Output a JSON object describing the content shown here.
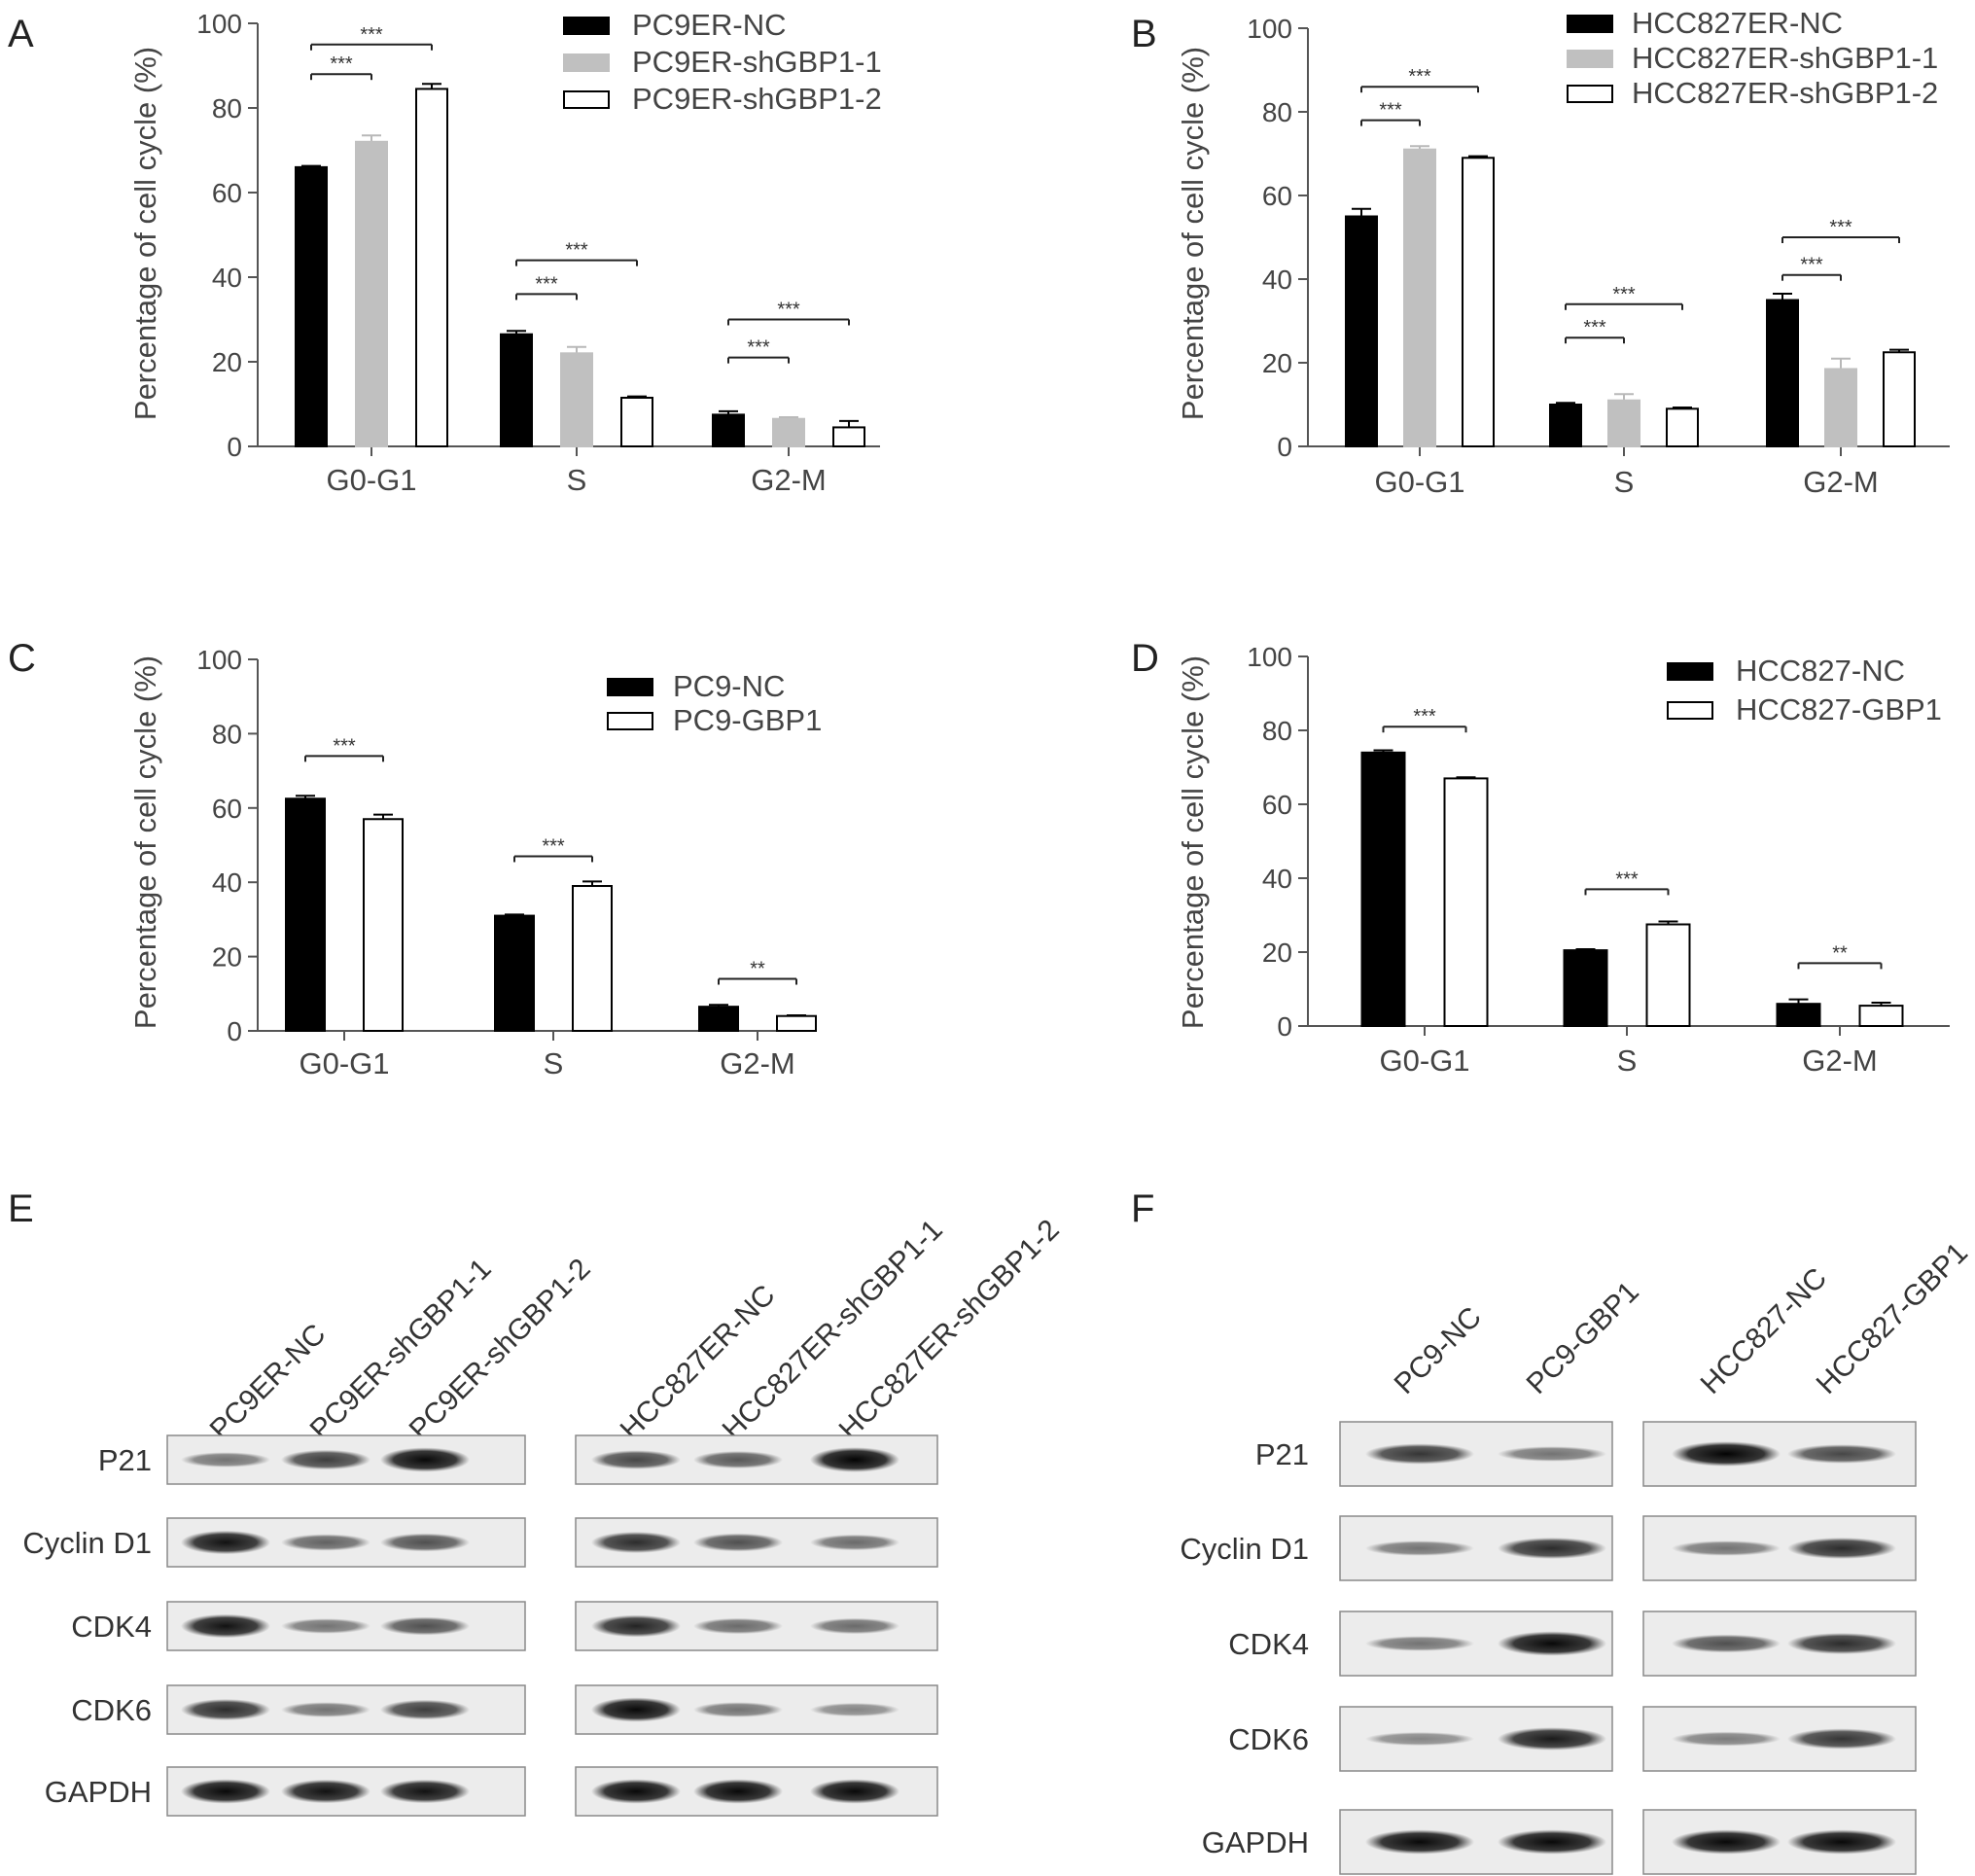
{
  "chart_data": [
    {
      "panel": "A",
      "type": "bar",
      "ylabel": "Percentage of cell cycle (%)",
      "ylim": [
        0,
        100
      ],
      "yticks": [
        "0",
        "20",
        "40",
        "60",
        "80",
        "100"
      ],
      "categories": [
        "G0-G1",
        "S",
        "G2-M"
      ],
      "legend_position": "top-right",
      "series": [
        {
          "name": "PC9ER-NC",
          "color": "#000000",
          "values": [
            66,
            26.5,
            7.5
          ],
          "errors": [
            0.3,
            0.8,
            0.8
          ]
        },
        {
          "name": "PC9ER-shGBP1-1",
          "color": "#c0c0c0",
          "values": [
            72,
            22,
            6.5
          ],
          "errors": [
            1.5,
            1.5,
            0.4
          ]
        },
        {
          "name": "PC9ER-shGBP1-2",
          "color": "#ffffff",
          "values": [
            84.5,
            11.5,
            4.5
          ],
          "errors": [
            1.2,
            0.3,
            1.5
          ]
        }
      ],
      "significance": [
        {
          "category": 0,
          "from": 0,
          "to": 1,
          "y": 88,
          "label": "***"
        },
        {
          "category": 0,
          "from": 0,
          "to": 2,
          "y": 95,
          "label": "***"
        },
        {
          "category": 1,
          "from": 0,
          "to": 1,
          "y": 36,
          "label": "***"
        },
        {
          "category": 1,
          "from": 0,
          "to": 2,
          "y": 44,
          "label": "***"
        },
        {
          "category": 2,
          "from": 0,
          "to": 1,
          "y": 21,
          "label": "***"
        },
        {
          "category": 2,
          "from": 0,
          "to": 2,
          "y": 30,
          "label": "***"
        }
      ]
    },
    {
      "panel": "B",
      "type": "bar",
      "ylabel": "Percentage of cell cycle (%)",
      "ylim": [
        0,
        100
      ],
      "yticks": [
        "0",
        "20",
        "40",
        "60",
        "80",
        "100"
      ],
      "categories": [
        "G0-G1",
        "S",
        "G2-M"
      ],
      "legend_position": "top-right",
      "series": [
        {
          "name": "HCC827ER-NC",
          "color": "#000000",
          "values": [
            55,
            10,
            35
          ],
          "errors": [
            1.8,
            0.4,
            1.5
          ]
        },
        {
          "name": "HCC827ER-shGBP1-1",
          "color": "#c0c0c0",
          "values": [
            71,
            11,
            18.5
          ],
          "errors": [
            0.8,
            1.5,
            2.5
          ]
        },
        {
          "name": "HCC827ER-shGBP1-2",
          "color": "#ffffff",
          "values": [
            69,
            9,
            22.5
          ],
          "errors": [
            0.4,
            0.3,
            0.6
          ]
        }
      ],
      "significance": [
        {
          "category": 0,
          "from": 0,
          "to": 1,
          "y": 78,
          "label": "***"
        },
        {
          "category": 0,
          "from": 0,
          "to": 2,
          "y": 86,
          "label": "***"
        },
        {
          "category": 1,
          "from": 0,
          "to": 1,
          "y": 26,
          "label": "***"
        },
        {
          "category": 1,
          "from": 0,
          "to": 2,
          "y": 34,
          "label": "***"
        },
        {
          "category": 2,
          "from": 0,
          "to": 1,
          "y": 41,
          "label": "***"
        },
        {
          "category": 2,
          "from": 0,
          "to": 2,
          "y": 50,
          "label": "***"
        }
      ]
    },
    {
      "panel": "C",
      "type": "bar",
      "ylabel": "Percentage of cell cycle (%)",
      "ylim": [
        0,
        100
      ],
      "yticks": [
        "0",
        "20",
        "40",
        "60",
        "80",
        "100"
      ],
      "categories": [
        "G0-G1",
        "S",
        "G2-M"
      ],
      "legend_position": "top-right",
      "series": [
        {
          "name": "PC9-NC",
          "color": "#000000",
          "values": [
            62.5,
            31,
            6.5
          ],
          "errors": [
            0.8,
            0.3,
            0.5
          ]
        },
        {
          "name": "PC9-GBP1",
          "color": "#ffffff",
          "values": [
            57,
            39,
            4
          ],
          "errors": [
            1.2,
            1.2,
            0.2
          ]
        }
      ],
      "significance": [
        {
          "category": 0,
          "from": 0,
          "to": 1,
          "y": 74,
          "label": "***"
        },
        {
          "category": 1,
          "from": 0,
          "to": 1,
          "y": 47,
          "label": "***"
        },
        {
          "category": 2,
          "from": 0,
          "to": 1,
          "y": 14,
          "label": "**"
        }
      ]
    },
    {
      "panel": "D",
      "type": "bar",
      "ylabel": "Percentage of cell cycle (%)",
      "ylim": [
        0,
        100
      ],
      "yticks": [
        "0",
        "20",
        "40",
        "60",
        "80",
        "100"
      ],
      "categories": [
        "G0-G1",
        "S",
        "G2-M"
      ],
      "legend_position": "top-right",
      "series": [
        {
          "name": "HCC827-NC",
          "color": "#000000",
          "values": [
            74,
            20.5,
            6
          ],
          "errors": [
            0.6,
            0.3,
            1.2
          ]
        },
        {
          "name": "HCC827-GBP1",
          "color": "#ffffff",
          "values": [
            67,
            27.5,
            5.5
          ],
          "errors": [
            0.3,
            0.8,
            0.8
          ]
        }
      ],
      "significance": [
        {
          "category": 0,
          "from": 0,
          "to": 1,
          "y": 81,
          "label": "***"
        },
        {
          "category": 1,
          "from": 0,
          "to": 1,
          "y": 37,
          "label": "***"
        },
        {
          "category": 2,
          "from": 0,
          "to": 1,
          "y": 17,
          "label": "**"
        }
      ]
    }
  ],
  "blots": {
    "E": {
      "letter": "E",
      "lanes_left": [
        "PC9ER-NC",
        "PC9ER-shGBP1-1",
        "PC9ER-shGBP1-2"
      ],
      "lanes_right": [
        "HCC827ER-NC",
        "HCC827ER-shGBP1-1",
        "HCC827ER-shGBP1-2"
      ],
      "proteins": [
        "P21",
        "Cyclin D1",
        "CDK4",
        "CDK6",
        "GAPDH"
      ],
      "intensity_left": [
        [
          0.35,
          0.65,
          0.95
        ],
        [
          0.9,
          0.45,
          0.55
        ],
        [
          0.9,
          0.35,
          0.55
        ],
        [
          0.75,
          0.35,
          0.65
        ],
        [
          0.95,
          0.9,
          0.9
        ]
      ],
      "intensity_right": [
        [
          0.6,
          0.5,
          0.98
        ],
        [
          0.75,
          0.55,
          0.4
        ],
        [
          0.8,
          0.4,
          0.4
        ],
        [
          0.95,
          0.35,
          0.25
        ],
        [
          0.95,
          0.95,
          0.95
        ]
      ]
    },
    "F": {
      "letter": "F",
      "lanes_left": [
        "PC9-NC",
        "PC9-GBP1"
      ],
      "lanes_right": [
        "HCC827-NC",
        "HCC827-GBP1"
      ],
      "proteins": [
        "P21",
        "Cyclin D1",
        "CDK4",
        "CDK6",
        "GAPDH"
      ],
      "intensity_left": [
        [
          0.7,
          0.35
        ],
        [
          0.35,
          0.75
        ],
        [
          0.35,
          0.95
        ],
        [
          0.25,
          0.85
        ],
        [
          0.95,
          0.95
        ]
      ],
      "intensity_right": [
        [
          0.98,
          0.6
        ],
        [
          0.35,
          0.75
        ],
        [
          0.55,
          0.75
        ],
        [
          0.3,
          0.7
        ],
        [
          0.95,
          0.95
        ]
      ]
    }
  }
}
